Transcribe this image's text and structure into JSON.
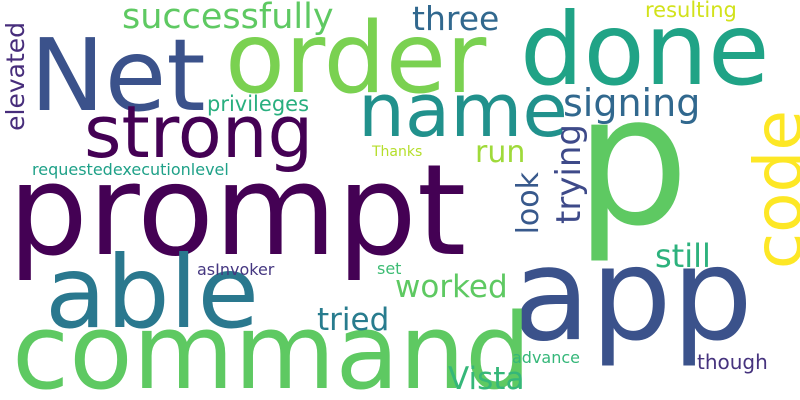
{
  "words": [
    {
      "id": "prompt",
      "text": "prompt",
      "color": "#440154",
      "vertical": false
    },
    {
      "id": "p",
      "text": "p",
      "color": "#5ec962",
      "vertical": false
    },
    {
      "id": "app",
      "text": "app",
      "color": "#3b528b",
      "vertical": false
    },
    {
      "id": "command",
      "text": "command",
      "color": "#5ec962",
      "vertical": false
    },
    {
      "id": "net",
      "text": "Net",
      "color": "#3b528b",
      "vertical": false
    },
    {
      "id": "order",
      "text": "order",
      "color": "#7ad151",
      "vertical": false
    },
    {
      "id": "done",
      "text": "done",
      "color": "#20a386",
      "vertical": false
    },
    {
      "id": "able",
      "text": "able",
      "color": "#2a788e",
      "vertical": false
    },
    {
      "id": "strong",
      "text": "strong",
      "color": "#440154",
      "vertical": false
    },
    {
      "id": "name",
      "text": "name",
      "color": "#21918c",
      "vertical": false
    },
    {
      "id": "code",
      "text": "code",
      "color": "#fde725",
      "vertical": true
    },
    {
      "id": "signing",
      "text": "signing",
      "color": "#31688e",
      "vertical": false
    },
    {
      "id": "successfully",
      "text": "successfully",
      "color": "#5ec962",
      "vertical": false
    },
    {
      "id": "three",
      "text": "three",
      "color": "#31688e",
      "vertical": false
    },
    {
      "id": "vista",
      "text": "Vista",
      "color": "#35b779",
      "vertical": false
    },
    {
      "id": "worked",
      "text": "worked",
      "color": "#5ec962",
      "vertical": false
    },
    {
      "id": "tried",
      "text": "tried",
      "color": "#287c8e",
      "vertical": false
    },
    {
      "id": "still",
      "text": "still",
      "color": "#2db27d",
      "vertical": false
    },
    {
      "id": "run",
      "text": "run",
      "color": "#9fda3a",
      "vertical": false
    },
    {
      "id": "trying",
      "text": "trying",
      "color": "#3e4a89",
      "vertical": true
    },
    {
      "id": "look",
      "text": "look",
      "color": "#38598c",
      "vertical": true
    },
    {
      "id": "elevated",
      "text": "elevated",
      "color": "#472d7b",
      "vertical": true
    },
    {
      "id": "privileges",
      "text": "privileges",
      "color": "#29af7f",
      "vertical": false
    },
    {
      "id": "resulting",
      "text": "resulting",
      "color": "#d2e21b",
      "vertical": false
    },
    {
      "id": "though",
      "text": "though",
      "color": "#46337e",
      "vertical": false
    },
    {
      "id": "set",
      "text": "set",
      "color": "#3dbc74",
      "vertical": false
    },
    {
      "id": "advance",
      "text": "advance",
      "color": "#35b779",
      "vertical": false
    },
    {
      "id": "asinvoker",
      "text": "asInvoker",
      "color": "#453781",
      "vertical": false
    },
    {
      "id": "requestedexecutionlevel",
      "text": "requestedexecutionlevel",
      "color": "#1fa188",
      "vertical": false
    },
    {
      "id": "thanks",
      "text": "Thanks",
      "color": "#b5de2b",
      "vertical": false
    }
  ]
}
